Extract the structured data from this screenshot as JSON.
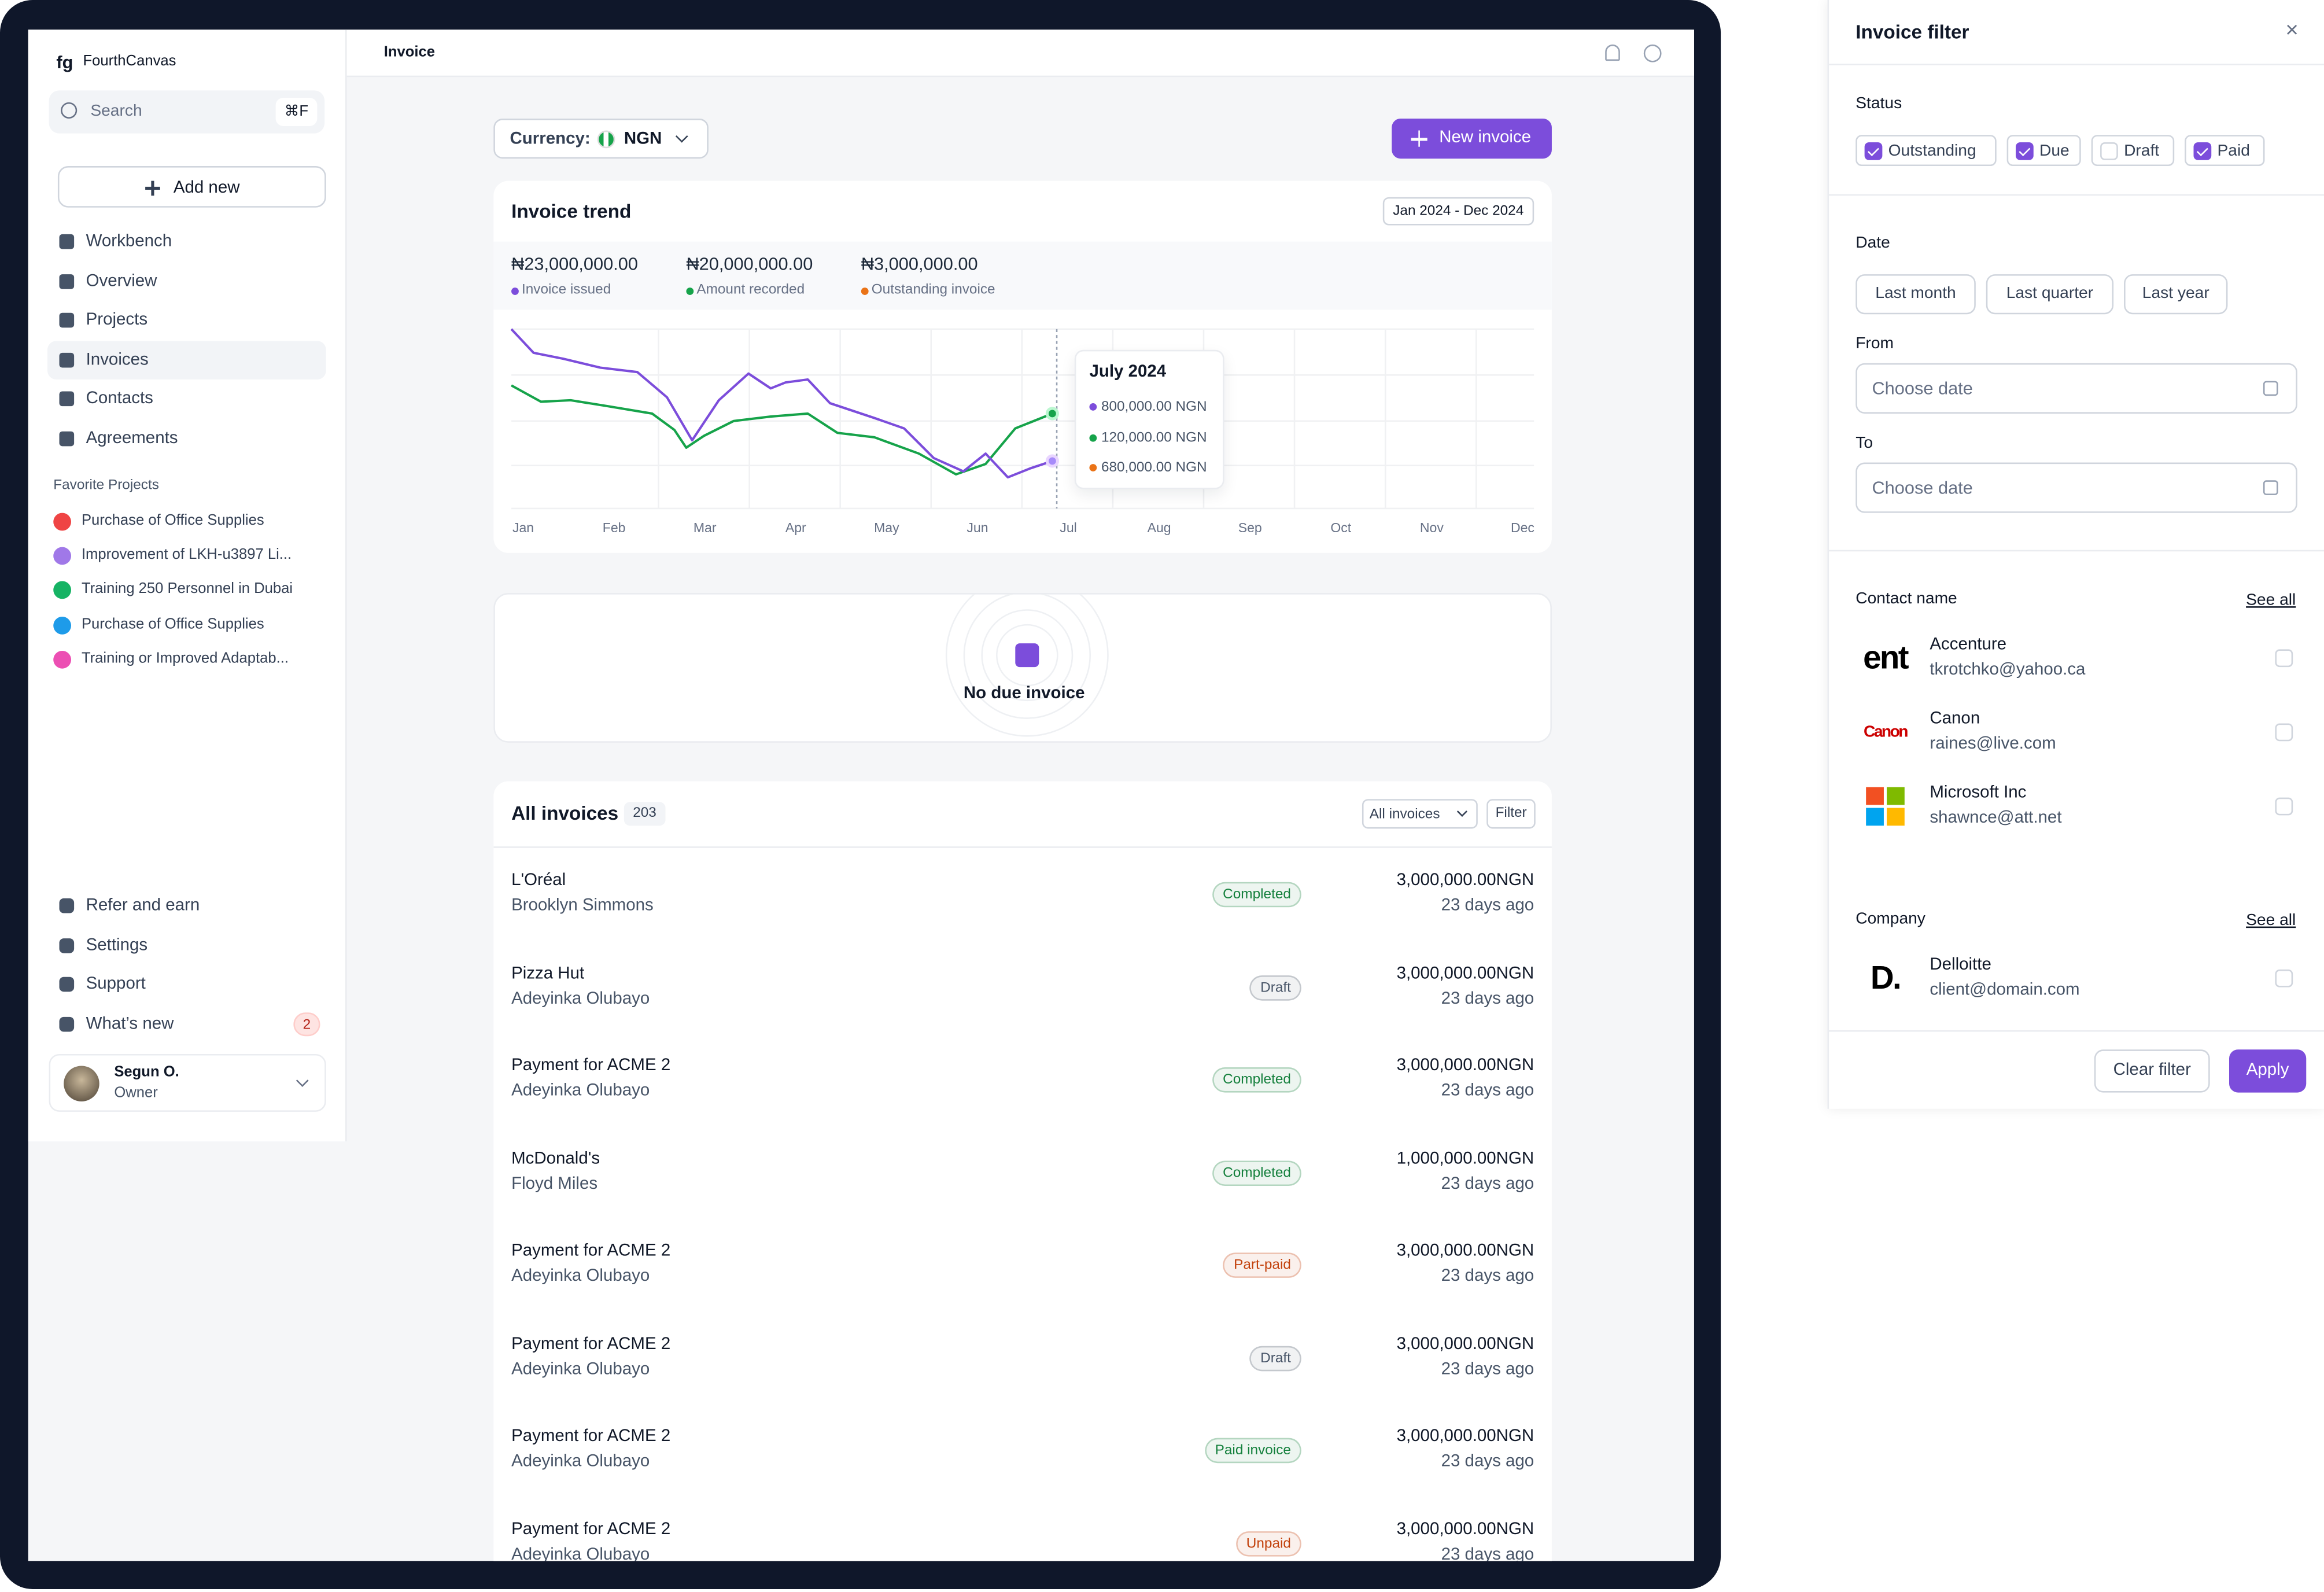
{
  "sidebar": {
    "logo": "fg",
    "workspace": "FourthCanvas",
    "search": "Search",
    "shortcut": "⌘F",
    "add_new": "Add new",
    "nav": [
      "Workbench",
      "Overview",
      "Projects",
      "Invoices",
      "Contacts",
      "Agreements"
    ],
    "favorites_title": "Favorite Projects",
    "favorites": [
      {
        "name": "Purchase of Office Supplies",
        "color": "#ef4444"
      },
      {
        "name": "Improvement of LKH-u3897 Li...",
        "color": "#a078e8"
      },
      {
        "name": "Training 250 Personnel in Dubai",
        "color": "#16b364"
      },
      {
        "name": "Purchase of Office Supplies",
        "color": "#1e9be9"
      },
      {
        "name": "Training or Improved Adaptab...",
        "color": "#ec4fb3"
      }
    ],
    "bottom_nav": [
      "Refer and earn",
      "Settings",
      "Support",
      "What’s new"
    ],
    "whats_new_badge": "2",
    "user": {
      "name": "Segun O.",
      "role": "Owner"
    }
  },
  "header": {
    "title": "Invoice"
  },
  "toolbar": {
    "currency_label": "Currency:",
    "currency": "NGN",
    "new_invoice": "New invoice"
  },
  "trend": {
    "title": "Invoice trend",
    "range": "Jan 2024 - Dec 2024",
    "stats": [
      {
        "value": "₦23,000,000.00",
        "label": "Invoice issued",
        "color": "#7c4ddb"
      },
      {
        "value": "₦20,000,000.00",
        "label": "Amount recorded",
        "color": "#16a34a"
      },
      {
        "value": "₦3,000,000.00",
        "label": "Outstanding invoice",
        "color": "#ea7317"
      }
    ],
    "months": [
      "Jan",
      "Feb",
      "Mar",
      "Apr",
      "May",
      "Jun",
      "Jul",
      "Aug",
      "Sep",
      "Oct",
      "Nov",
      "Dec"
    ],
    "tooltip": {
      "title": "July 2024",
      "rows": [
        {
          "text": "800,000.00 NGN",
          "color": "#7c4ddb"
        },
        {
          "text": "120,000.00 NGN",
          "color": "#16a34a"
        },
        {
          "text": "680,000.00 NGN",
          "color": "#ea7317"
        }
      ]
    }
  },
  "empty": {
    "text": "No due invoice"
  },
  "invoices": {
    "title": "All invoices",
    "count": "203",
    "select": "All invoices",
    "filter": "Filter",
    "rows": [
      {
        "title": "L'Oréal",
        "client": "Brooklyn Simmons",
        "status": "Completed",
        "color": "#15803d",
        "amount": "3,000,000.00",
        "currency": "NGN",
        "time": "23 days ago"
      },
      {
        "title": "Pizza Hut",
        "client": "Adeyinka Olubayo",
        "status": "Draft",
        "color": "#475467",
        "amount": "3,000,000.00",
        "currency": "NGN",
        "time": "23 days ago"
      },
      {
        "title": "Payment for ACME 2",
        "client": "Adeyinka Olubayo",
        "status": "Completed",
        "color": "#15803d",
        "amount": "3,000,000.00",
        "currency": "NGN",
        "time": "23 days ago"
      },
      {
        "title": "McDonald's",
        "client": "Floyd Miles",
        "status": "Completed",
        "color": "#15803d",
        "amount": "1,000,000.00",
        "currency": "NGN",
        "time": "23 days ago"
      },
      {
        "title": "Payment for ACME 2",
        "client": "Adeyinka Olubayo",
        "status": "Part-paid",
        "color": "#c2410c",
        "amount": "3,000,000.00",
        "currency": "NGN",
        "time": "23 days ago"
      },
      {
        "title": "Payment for ACME 2",
        "client": "Adeyinka Olubayo",
        "status": "Draft",
        "color": "#475467",
        "amount": "3,000,000.00",
        "currency": "NGN",
        "time": "23 days ago"
      },
      {
        "title": "Payment for ACME 2",
        "client": "Adeyinka Olubayo",
        "status": "Paid invoice",
        "color": "#15803d",
        "amount": "3,000,000.00",
        "currency": "NGN",
        "time": "23 days ago"
      },
      {
        "title": "Payment for ACME 2",
        "client": "Adeyinka Olubayo",
        "status": "Unpaid",
        "color": "#c2410c",
        "amount": "3,000,000.00",
        "currency": "NGN",
        "time": "23 days ago"
      }
    ]
  },
  "filter_panel": {
    "title": "Invoice filter",
    "close": "×",
    "status_label": "Status",
    "statuses": [
      {
        "label": "Outstanding",
        "checked": true
      },
      {
        "label": "Due",
        "checked": true
      },
      {
        "label": "Draft",
        "checked": false
      },
      {
        "label": "Paid",
        "checked": true
      }
    ],
    "date_label": "Date",
    "date_buttons": [
      "Last month",
      "Last quarter",
      "Last year"
    ],
    "from_label": "From",
    "from_placeholder": "Choose date",
    "to_label": "To",
    "to_placeholder": "Choose date",
    "contact_label": "Contact name",
    "see_all": "See all",
    "contacts": [
      {
        "name": "Accenture",
        "email": "tkrotchko@yahoo.ca",
        "logo": "ent"
      },
      {
        "name": "Canon",
        "email": "raines@live.com",
        "logo": "Canon"
      },
      {
        "name": "Microsoft Inc",
        "email": "shawnce@att.net",
        "logo": ""
      }
    ],
    "company_label": "Company",
    "companies": [
      {
        "name": "Delloitte",
        "email": "client@domain.com",
        "logo": "D."
      }
    ],
    "clear": "Clear filter",
    "apply": "Apply"
  }
}
